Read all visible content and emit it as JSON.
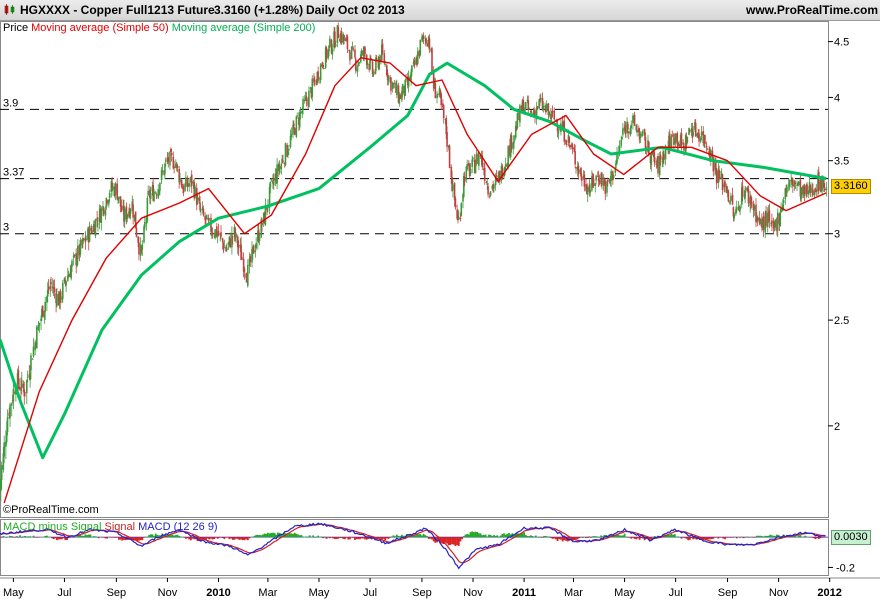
{
  "header": {
    "symbol": "HGXXXX - Copper Full1213 Future",
    "price": "3.3160 (+1.28%)",
    "period": "Daily  Oct 02 2013",
    "site": "www.ProRealTime.com"
  },
  "indicators": {
    "price_label": "Price",
    "ma50_label": "Moving average (Simple 50)",
    "ma200_label": "Moving average (Simple 200)",
    "macd_part1": "MACD minus Signal",
    "macd_part2": "Signal",
    "macd_part3": "MACD (12 26 9)"
  },
  "copyright": "©ProRealTime.com",
  "colors": {
    "ma50": "#e00000",
    "ma200": "#00c060",
    "candle_up": "#3a9a3a",
    "candle_down": "#c04040",
    "macd_line": "#2222cc",
    "signal_line": "#cc2222",
    "hist_pos": "#22aa22",
    "hist_neg": "#dd2222",
    "badge_price": "#ffd000",
    "badge_macd": "#c8f0d0"
  },
  "chart_data": {
    "type": "line",
    "title": "HGXXXX - Copper Full1213 Future",
    "ylim": [
      1.65,
      4.7
    ],
    "yticks": [
      "4.5",
      "4",
      "3.5",
      "3",
      "2.5",
      "2"
    ],
    "ytick_values": [
      4.5,
      4,
      3.5,
      3,
      2.5,
      2
    ],
    "xtick_labels": [
      "May",
      "Jul",
      "Sep",
      "Nov",
      "2010",
      "Mar",
      "May",
      "Jul",
      "Sep",
      "Nov",
      "2011",
      "Mar",
      "May",
      "Jul",
      "Sep",
      "Nov",
      "2012"
    ],
    "xtick_bold": [
      "2010",
      "2011",
      "2012"
    ],
    "x_start": "2009-04-15",
    "x_end": "2011-12-30",
    "xtick_dates": [
      "2009-05-01",
      "2009-07-01",
      "2009-09-01",
      "2009-11-01",
      "2010-01-01",
      "2010-03-01",
      "2010-05-01",
      "2010-07-01",
      "2010-09-01",
      "2010-11-01",
      "2011-01-01",
      "2011-03-01",
      "2011-05-01",
      "2011-07-01",
      "2011-09-01",
      "2011-11-01",
      "2012-01-01"
    ],
    "hlines": [
      {
        "label": "3.9",
        "value": 3.9
      },
      {
        "label": "3.37",
        "value": 3.37
      },
      {
        "label": "3",
        "value": 3.0
      }
    ],
    "price_path": [
      [
        "2009-04-15",
        1.75
      ],
      [
        "2009-04-25",
        2.05
      ],
      [
        "2009-05-05",
        2.2
      ],
      [
        "2009-05-15",
        2.15
      ],
      [
        "2009-05-25",
        2.35
      ],
      [
        "2009-06-05",
        2.55
      ],
      [
        "2009-06-15",
        2.7
      ],
      [
        "2009-06-25",
        2.6
      ],
      [
        "2009-07-05",
        2.75
      ],
      [
        "2009-07-15",
        2.85
      ],
      [
        "2009-07-25",
        2.95
      ],
      [
        "2009-08-05",
        3.05
      ],
      [
        "2009-08-15",
        3.15
      ],
      [
        "2009-08-25",
        3.3
      ],
      [
        "2009-09-01",
        3.3
      ],
      [
        "2009-09-10",
        3.1
      ],
      [
        "2009-09-20",
        3.2
      ],
      [
        "2009-10-01",
        2.85
      ],
      [
        "2009-10-10",
        3.25
      ],
      [
        "2009-10-20",
        3.3
      ],
      [
        "2009-11-01",
        3.5
      ],
      [
        "2009-11-10",
        3.5
      ],
      [
        "2009-11-20",
        3.3
      ],
      [
        "2009-12-01",
        3.35
      ],
      [
        "2009-12-10",
        3.15
      ],
      [
        "2009-12-20",
        3.05
      ],
      [
        "2010-01-01",
        3.0
      ],
      [
        "2010-01-10",
        2.9
      ],
      [
        "2010-01-20",
        3.0
      ],
      [
        "2010-02-05",
        2.75
      ],
      [
        "2010-02-15",
        2.95
      ],
      [
        "2010-02-25",
        3.1
      ],
      [
        "2010-03-05",
        3.3
      ],
      [
        "2010-03-15",
        3.45
      ],
      [
        "2010-03-25",
        3.6
      ],
      [
        "2010-04-05",
        3.8
      ],
      [
        "2010-04-15",
        3.95
      ],
      [
        "2010-04-25",
        4.1
      ],
      [
        "2010-05-05",
        4.3
      ],
      [
        "2010-05-15",
        4.45
      ],
      [
        "2010-05-25",
        4.6
      ],
      [
        "2010-06-05",
        4.45
      ],
      [
        "2010-06-15",
        4.3
      ],
      [
        "2010-06-25",
        4.4
      ],
      [
        "2010-07-05",
        4.2
      ],
      [
        "2010-07-15",
        4.4
      ],
      [
        "2010-07-25",
        4.15
      ],
      [
        "2010-08-05",
        4.0
      ],
      [
        "2010-08-15",
        4.1
      ],
      [
        "2010-08-25",
        4.3
      ],
      [
        "2010-09-01",
        4.5
      ],
      [
        "2010-09-10",
        4.55
      ],
      [
        "2010-09-15",
        4.1
      ],
      [
        "2010-09-22",
        4.0
      ],
      [
        "2010-10-01",
        3.7
      ],
      [
        "2010-10-08",
        3.3
      ],
      [
        "2010-10-15",
        3.05
      ],
      [
        "2010-10-22",
        3.4
      ],
      [
        "2010-11-01",
        3.45
      ],
      [
        "2010-11-10",
        3.55
      ],
      [
        "2010-11-20",
        3.3
      ],
      [
        "2010-12-01",
        3.35
      ],
      [
        "2010-12-10",
        3.5
      ],
      [
        "2010-12-20",
        3.7
      ],
      [
        "2011-01-01",
        3.95
      ],
      [
        "2011-01-10",
        3.85
      ],
      [
        "2011-01-20",
        3.95
      ],
      [
        "2011-02-01",
        3.85
      ],
      [
        "2011-02-10",
        3.8
      ],
      [
        "2011-02-20",
        3.7
      ],
      [
        "2011-03-01",
        3.55
      ],
      [
        "2011-03-10",
        3.4
      ],
      [
        "2011-03-20",
        3.3
      ],
      [
        "2011-04-01",
        3.4
      ],
      [
        "2011-04-10",
        3.3
      ],
      [
        "2011-04-20",
        3.45
      ],
      [
        "2011-05-01",
        3.75
      ],
      [
        "2011-05-10",
        3.8
      ],
      [
        "2011-05-20",
        3.7
      ],
      [
        "2011-06-01",
        3.55
      ],
      [
        "2011-06-10",
        3.45
      ],
      [
        "2011-06-20",
        3.6
      ],
      [
        "2011-07-01",
        3.7
      ],
      [
        "2011-07-10",
        3.6
      ],
      [
        "2011-07-20",
        3.75
      ],
      [
        "2011-08-01",
        3.7
      ],
      [
        "2011-08-10",
        3.6
      ],
      [
        "2011-08-20",
        3.4
      ],
      [
        "2011-09-01",
        3.3
      ],
      [
        "2011-09-10",
        3.1
      ],
      [
        "2011-09-20",
        3.3
      ],
      [
        "2011-10-01",
        3.2
      ],
      [
        "2011-10-10",
        3.05
      ],
      [
        "2011-10-20",
        3.1
      ],
      [
        "2011-10-25",
        3.0
      ],
      [
        "2011-11-01",
        3.1
      ],
      [
        "2011-11-10",
        3.3
      ],
      [
        "2011-11-20",
        3.35
      ],
      [
        "2011-12-01",
        3.25
      ],
      [
        "2011-12-10",
        3.3
      ],
      [
        "2011-12-20",
        3.35
      ],
      [
        "2011-12-28",
        3.32
      ]
    ],
    "ma50_path": [
      [
        "2009-04-20",
        1.7
      ],
      [
        "2009-06-01",
        2.15
      ],
      [
        "2009-07-10",
        2.5
      ],
      [
        "2009-08-20",
        2.85
      ],
      [
        "2009-10-01",
        3.1
      ],
      [
        "2009-11-15",
        3.2
      ],
      [
        "2009-12-20",
        3.3
      ],
      [
        "2010-02-01",
        3.0
      ],
      [
        "2010-03-05",
        3.12
      ],
      [
        "2010-04-15",
        3.55
      ],
      [
        "2010-05-20",
        4.1
      ],
      [
        "2010-06-20",
        4.35
      ],
      [
        "2010-07-25",
        4.3
      ],
      [
        "2010-08-25",
        4.1
      ],
      [
        "2010-09-25",
        4.15
      ],
      [
        "2010-10-25",
        3.7
      ],
      [
        "2010-12-01",
        3.35
      ],
      [
        "2011-01-10",
        3.7
      ],
      [
        "2011-02-20",
        3.85
      ],
      [
        "2011-03-25",
        3.55
      ],
      [
        "2011-04-30",
        3.4
      ],
      [
        "2011-06-10",
        3.6
      ],
      [
        "2011-07-20",
        3.6
      ],
      [
        "2011-09-01",
        3.5
      ],
      [
        "2011-10-10",
        3.25
      ],
      [
        "2011-11-10",
        3.15
      ],
      [
        "2011-12-28",
        3.27
      ]
    ],
    "ma200_path": [
      [
        "2009-04-15",
        2.4
      ],
      [
        "2009-05-10",
        2.1
      ],
      [
        "2009-06-05",
        1.87
      ],
      [
        "2009-07-01",
        2.05
      ],
      [
        "2009-08-15",
        2.45
      ],
      [
        "2009-10-01",
        2.75
      ],
      [
        "2009-11-15",
        2.95
      ],
      [
        "2010-01-01",
        3.1
      ],
      [
        "2010-03-01",
        3.18
      ],
      [
        "2010-05-01",
        3.3
      ],
      [
        "2010-07-01",
        3.6
      ],
      [
        "2010-08-15",
        3.85
      ],
      [
        "2010-09-10",
        4.2
      ],
      [
        "2010-10-01",
        4.3
      ],
      [
        "2010-11-15",
        4.1
      ],
      [
        "2010-12-20",
        3.9
      ],
      [
        "2011-02-01",
        3.8
      ],
      [
        "2011-03-15",
        3.65
      ],
      [
        "2011-04-15",
        3.55
      ],
      [
        "2011-06-15",
        3.6
      ],
      [
        "2011-08-15",
        3.5
      ],
      [
        "2011-10-15",
        3.45
      ],
      [
        "2011-12-28",
        3.37
      ]
    ],
    "price_badges": [
      {
        "label": "3.3160",
        "value": 3.316
      }
    ],
    "macd": {
      "ylim": [
        -0.25,
        0.12
      ],
      "yticks": [
        "-0.2"
      ],
      "ytick_values": [
        -0.2
      ],
      "badge": "0.0030",
      "badge_value": 0.003,
      "macd_path": [
        [
          "2009-04-15",
          0.02
        ],
        [
          "2009-05-15",
          0.04
        ],
        [
          "2009-06-10",
          0.05
        ],
        [
          "2009-07-05",
          0.0
        ],
        [
          "2009-08-01",
          0.05
        ],
        [
          "2009-09-01",
          0.03
        ],
        [
          "2009-10-01",
          -0.06
        ],
        [
          "2009-10-20",
          0.0
        ],
        [
          "2009-11-15",
          0.05
        ],
        [
          "2009-12-15",
          -0.03
        ],
        [
          "2010-01-15",
          -0.06
        ],
        [
          "2010-02-05",
          -0.12
        ],
        [
          "2010-03-01",
          -0.04
        ],
        [
          "2010-04-01",
          0.07
        ],
        [
          "2010-05-01",
          0.09
        ],
        [
          "2010-06-01",
          0.05
        ],
        [
          "2010-07-01",
          0.0
        ],
        [
          "2010-07-20",
          -0.04
        ],
        [
          "2010-08-20",
          0.02
        ],
        [
          "2010-09-05",
          0.06
        ],
        [
          "2010-09-25",
          -0.05
        ],
        [
          "2010-10-15",
          -0.2
        ],
        [
          "2010-11-05",
          -0.08
        ],
        [
          "2010-12-01",
          -0.05
        ],
        [
          "2011-01-01",
          0.06
        ],
        [
          "2011-02-01",
          0.06
        ],
        [
          "2011-03-01",
          -0.03
        ],
        [
          "2011-04-01",
          -0.02
        ],
        [
          "2011-05-01",
          0.05
        ],
        [
          "2011-06-01",
          -0.02
        ],
        [
          "2011-07-01",
          0.05
        ],
        [
          "2011-08-01",
          -0.02
        ],
        [
          "2011-09-01",
          -0.05
        ],
        [
          "2011-10-01",
          -0.05
        ],
        [
          "2011-11-01",
          0.0
        ],
        [
          "2011-12-01",
          0.03
        ],
        [
          "2011-12-28",
          0.003
        ]
      ]
    }
  }
}
